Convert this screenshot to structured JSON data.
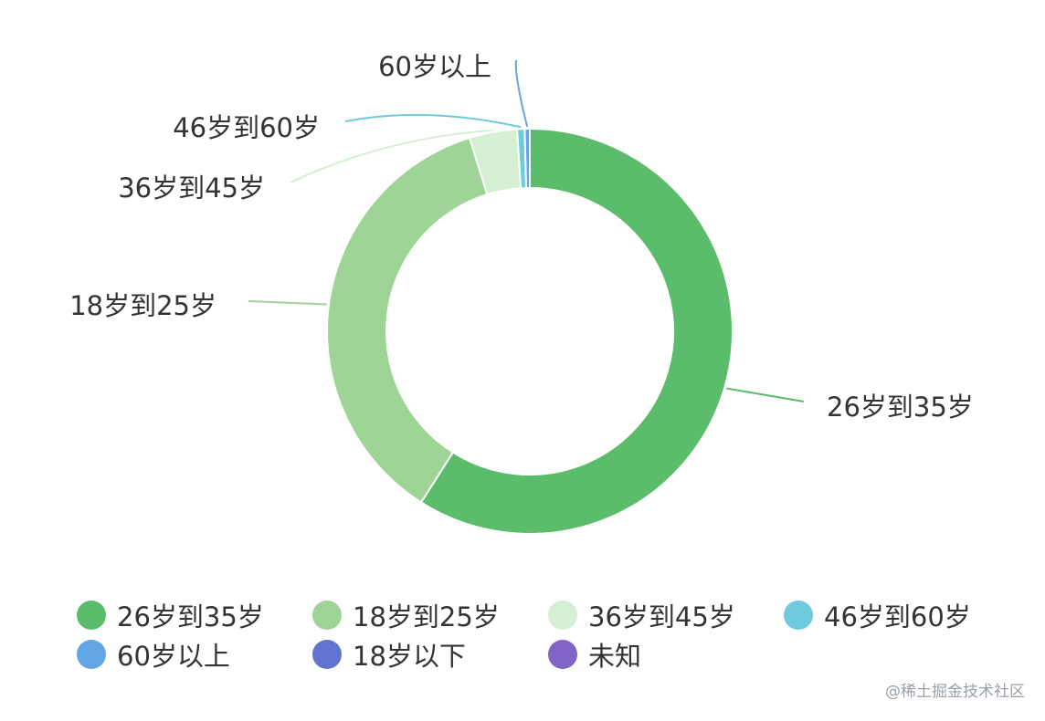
{
  "chart_data": {
    "type": "pie",
    "style": "donut",
    "categories": [
      "26岁到35岁",
      "18岁到25岁",
      "36岁到45岁",
      "46岁到60岁",
      "60岁以上",
      "18岁以下",
      "未知"
    ],
    "values": [
      59.0,
      36.2,
      3.8,
      0.6,
      0.4,
      0,
      0
    ],
    "colors": [
      "#5bbd6b",
      "#9ed495",
      "#d5efd3",
      "#6ecbdc",
      "#62a6e6",
      "#6274cf",
      "#8064c6"
    ],
    "legend_position": "bottom"
  },
  "watermark": "@稀土掘金技术社区"
}
